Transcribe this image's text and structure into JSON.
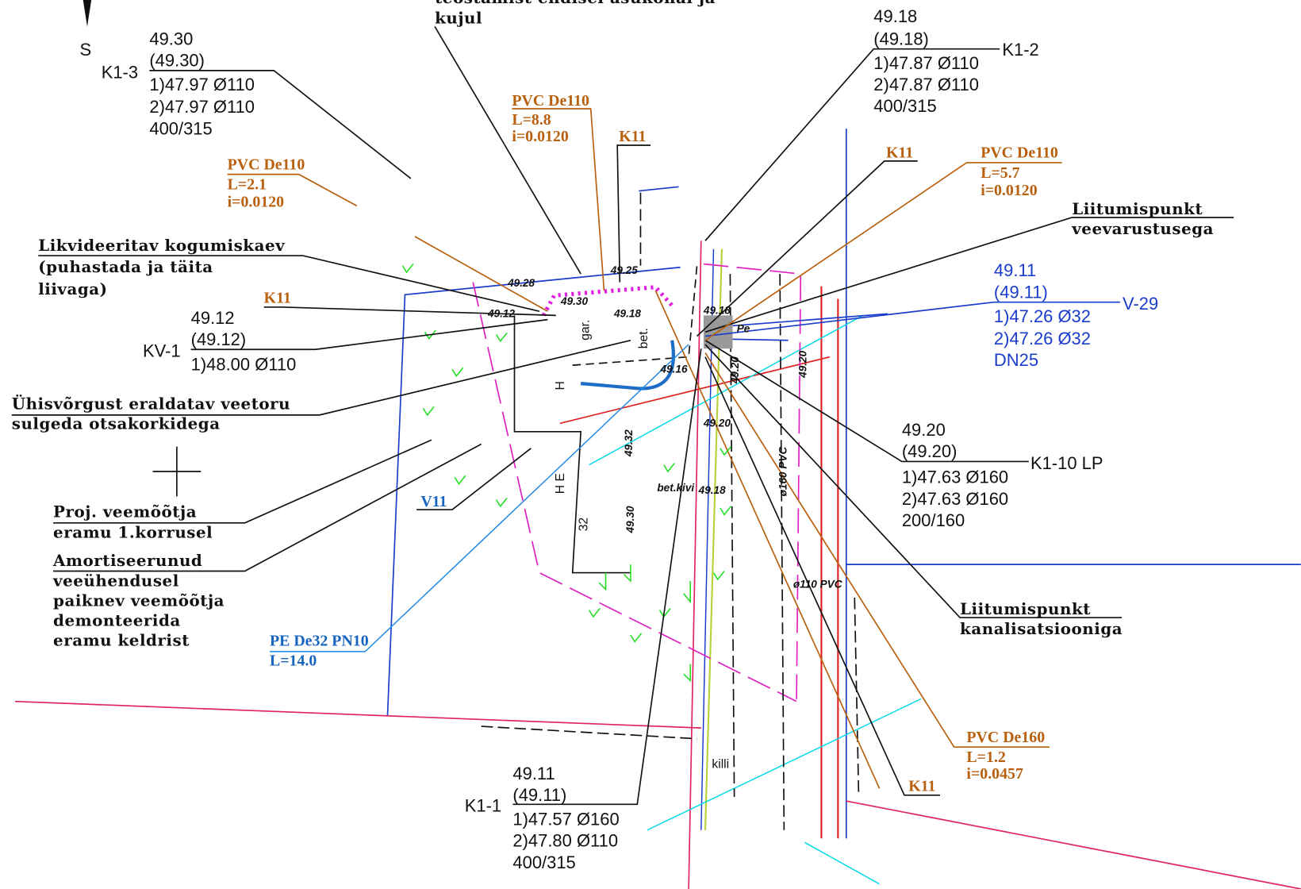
{
  "north_arrow": "S",
  "wells": {
    "k1_3": {
      "id": "K1-3",
      "top": "49.30",
      "design": "(49.30)",
      "lines": [
        "1)47.97  Ø110",
        "2)47.97  Ø110",
        "400/315"
      ]
    },
    "k1_2": {
      "id": "K1-2",
      "top": "49.18",
      "design": "(49.18)",
      "lines": [
        "1)47.87  Ø110",
        "2)47.87  Ø110",
        "400/315"
      ]
    },
    "kv_1": {
      "id": "KV-1",
      "top": "49.12",
      "design": "(49.12)",
      "lines": [
        "1)48.00  Ø110"
      ]
    },
    "v_29": {
      "id": "V-29",
      "top": "49.11",
      "design": "(49.11)",
      "lines": [
        "1)47.26  Ø32",
        "2)47.26  Ø32",
        "DN25"
      ]
    },
    "k1_10": {
      "id": "K1-10 LP",
      "top": "49.20",
      "design": "(49.20)",
      "lines": [
        "1)47.63  Ø160",
        "2)47.63  Ø160",
        "200/160"
      ]
    },
    "k1_1": {
      "id": "K1-1",
      "top": "49.11",
      "design": "(49.11)",
      "lines": [
        "1)47.57  Ø160",
        "2)47.80  Ø110",
        "400/315"
      ]
    }
  },
  "pipes": [
    {
      "name": "PVC De110",
      "length": "L=8.8",
      "slope": "i=0.0120"
    },
    {
      "name": "PVC De110",
      "length": "L=2.1",
      "slope": "i=0.0120"
    },
    {
      "name": "PVC De110",
      "length": "L=5.7",
      "slope": "i=0.0120"
    },
    {
      "name": "PVC De160",
      "length": "L=1.2",
      "slope": "i=0.0457"
    },
    {
      "name": "PE De32 PN10",
      "length": "L=14.0"
    }
  ],
  "k11_labels": [
    "K11",
    "K11",
    "K11",
    "K11"
  ],
  "v11_label": "V11",
  "notes": {
    "restore": [
      "teostamist endisel asukohal ja",
      "kujul"
    ],
    "liquidate": [
      "Likvideeritav kogumiskaev",
      "(puhastada ja täita",
      "liivaga)"
    ],
    "close_pipe": [
      "Ühisvõrgust eraldatav veetoru",
      "sulgeda otsakorkidega"
    ],
    "new_meter": [
      "Proj. veemõõtja",
      "eramu 1.korrusel"
    ],
    "old_meter": [
      "Amortiseerunud",
      "veeühendusel",
      "paiknev veemõõtja",
      "demonteerida",
      "eramu keldrist"
    ],
    "water_connection": [
      "Liitumispunkt",
      "veevarustusega"
    ],
    "sewer_connection": [
      "Liitumispunkt",
      "kanalisatsiooniga"
    ]
  },
  "map_labels": [
    "49.28",
    "49.25",
    "49.30",
    "49.12",
    "49.18",
    "49.18",
    "49.16",
    "49.20",
    "49.32",
    "49.18",
    "49.30",
    "49.20",
    "49.20",
    "gar.",
    "bet.",
    "bet.kivi",
    "H",
    "H E",
    "32",
    "killi",
    "ø160 PVC",
    "ø110 PVC",
    "Pe"
  ]
}
